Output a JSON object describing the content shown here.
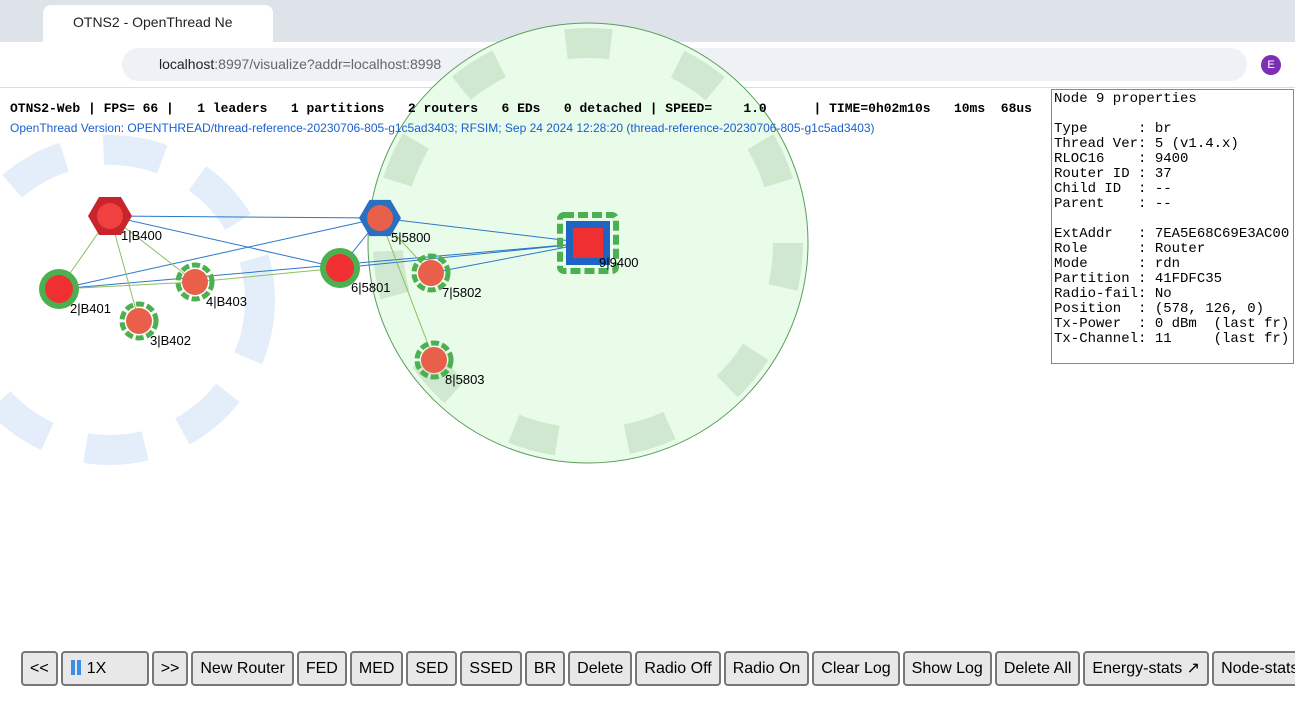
{
  "browser": {
    "tab_title": "OTNS2 - OpenThread Ne",
    "url_host": "localhost",
    "url_rest": ":8997/visualize?addr=localhost:8998",
    "profile": "E"
  },
  "status_line": "OTNS2-Web | FPS= 66 |   1 leaders   1 partitions   2 routers   6 EDs   0 detached | SPEED=    1.0      | TIME=0h02m10s   10ms  68us",
  "version_line": "OpenThread Version: OPENTHREAD/thread-reference-20230706-805-g1c5ad3403; RFSIM; Sep 24 2024 12:28:20 (thread-reference-20230706-805-g1c5ad3403)",
  "nodes": [
    {
      "label": "1|B400"
    },
    {
      "label": "2|B401"
    },
    {
      "label": "3|B402"
    },
    {
      "label": "4|B403"
    },
    {
      "label": "5|5800"
    },
    {
      "label": "6|5801"
    },
    {
      "label": "7|5802"
    },
    {
      "label": "8|5803"
    },
    {
      "label": "9|9400"
    }
  ],
  "properties": {
    "title": "Node 9 properties",
    "group1": [
      "Type      : br",
      "Thread Ver: 5 (v1.4.x)",
      "RLOC16    : 9400",
      "Router ID : 37",
      "Child ID  : --",
      "Parent    : --"
    ],
    "group2": [
      "ExtAddr   : 7EA5E68C69E3AC00",
      "Role      : Router",
      "Mode      : rdn",
      "Partition : 41FDFC35",
      "Radio-fail: No",
      "Position  : (578, 126, 0)",
      "Tx-Power  : 0 dBm  (last fr)",
      "Tx-Channel: 11     (last fr)"
    ]
  },
  "buttons": [
    "<<",
    "1X",
    ">>",
    "New Router",
    "FED",
    "MED",
    "SED",
    "SSED",
    "BR",
    "Delete",
    "Radio Off",
    "Radio On",
    "Clear Log",
    "Show Log",
    "Delete All",
    "Energy-stats ↗",
    "Node-stats ↗"
  ]
}
